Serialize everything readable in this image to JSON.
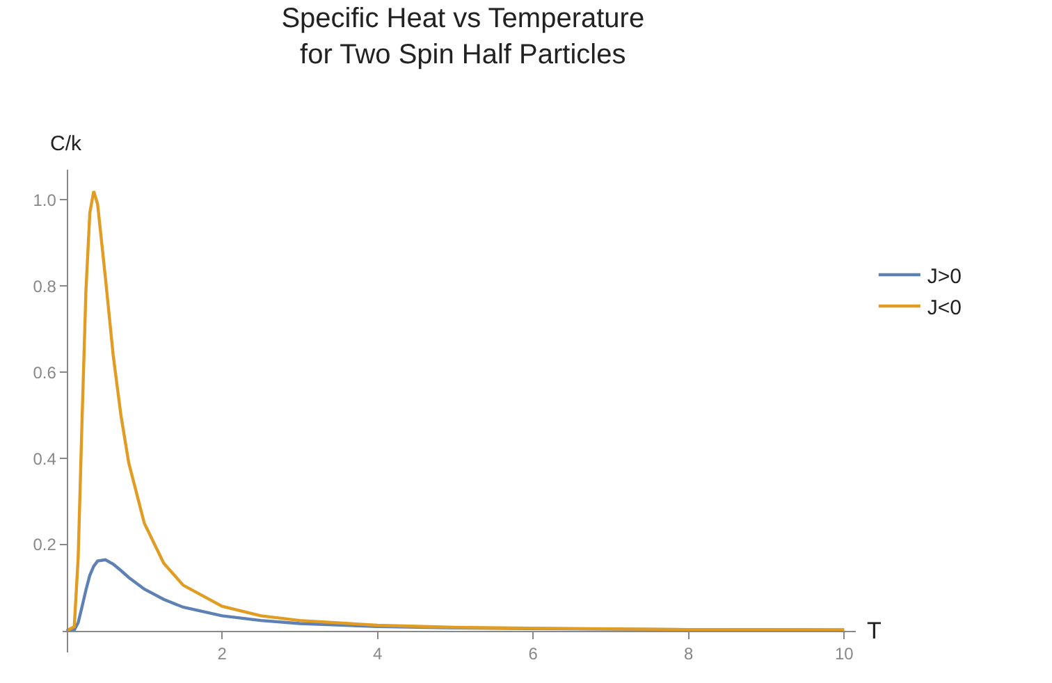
{
  "chart_data": {
    "type": "line",
    "title": "Specific Heat vs Temperature\nfor Two Spin Half Particles",
    "xlabel": "T",
    "ylabel": "C/k",
    "x": [
      0,
      0.1,
      0.15,
      0.2,
      0.25,
      0.3,
      0.35,
      0.4,
      0.5,
      0.6,
      0.7,
      0.8,
      1,
      1.25,
      1.5,
      2,
      2.5,
      3,
      4,
      5,
      6,
      8,
      10
    ],
    "series": [
      {
        "name": "J>0",
        "color": "#5e81b5",
        "values": [
          0,
          0.002,
          0.019,
          0.056,
          0.095,
          0.129,
          0.15,
          0.162,
          0.165,
          0.155,
          0.14,
          0.124,
          0.097,
          0.073,
          0.055,
          0.035,
          0.024,
          0.017,
          0.01,
          0.007,
          0.005,
          0.003,
          0.002
        ]
      },
      {
        "name": "J<0",
        "color": "#e19c24",
        "values": [
          0,
          0.01,
          0.17,
          0.49,
          0.79,
          0.97,
          1.02,
          0.99,
          0.82,
          0.64,
          0.5,
          0.39,
          0.25,
          0.157,
          0.106,
          0.057,
          0.035,
          0.024,
          0.013,
          0.008,
          0.006,
          0.003,
          0.002
        ]
      }
    ],
    "xlim": [
      -0.05,
      10.15
    ],
    "ylim": [
      -0.05,
      1.07
    ],
    "xticks": [
      2,
      4,
      6,
      8,
      10
    ],
    "yticks": [
      {
        "value": 0.2,
        "label": "0.2"
      },
      {
        "value": 0.4,
        "label": "0.4"
      },
      {
        "value": 0.6,
        "label": "0.6"
      },
      {
        "value": 0.8,
        "label": "0.8"
      },
      {
        "value": 1,
        "label": "1.0"
      }
    ],
    "grid": false,
    "legend": "right",
    "marker": "none",
    "line_style": "solid"
  }
}
